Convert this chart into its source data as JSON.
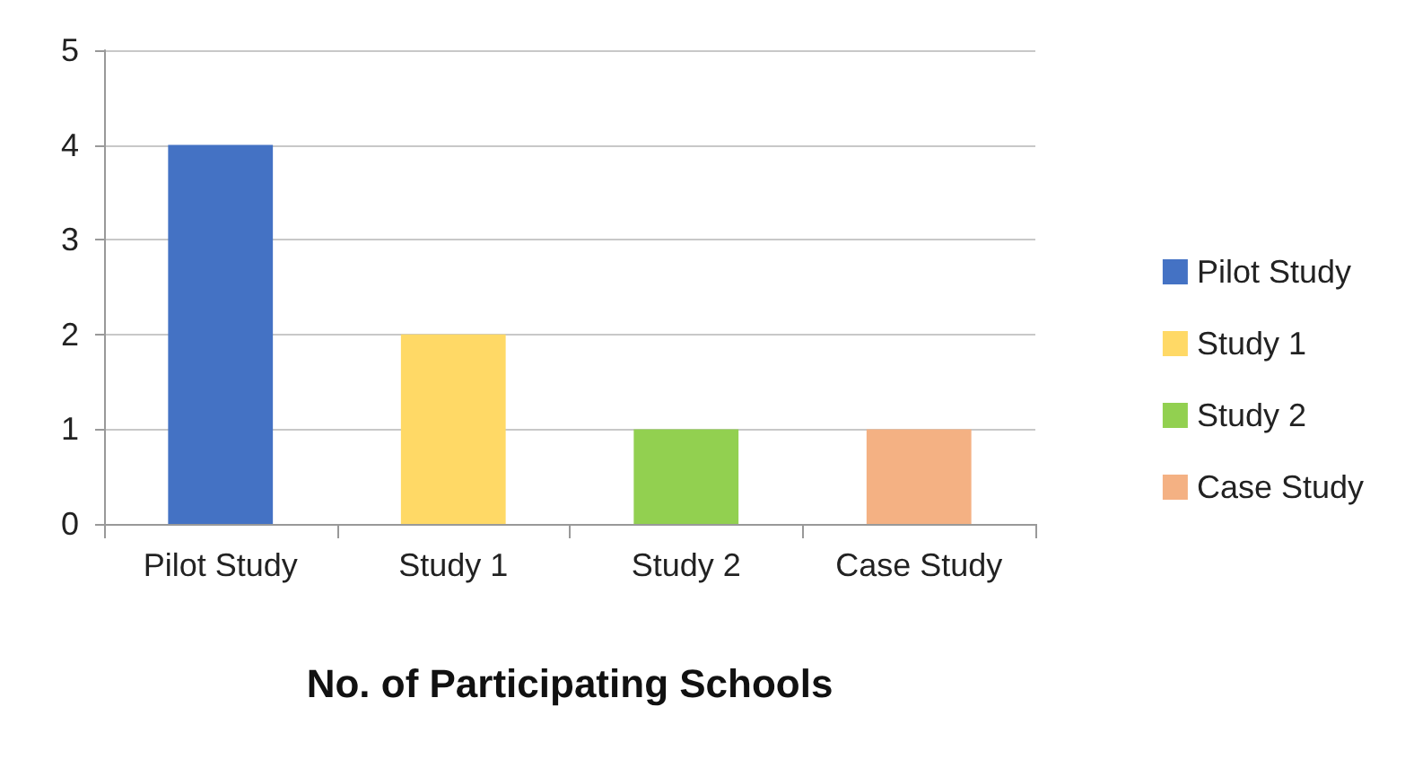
{
  "chart_data": {
    "type": "bar",
    "xlabel": "No. of Participating Schools",
    "categories": [
      "Pilot Study",
      "Study 1",
      "Study 2",
      "Case Study"
    ],
    "stacked": true,
    "series": [
      {
        "name": "Pilot Study",
        "color": "#4472c4",
        "values": [
          4,
          null,
          null,
          null
        ]
      },
      {
        "name": "Study 1",
        "color": "#ffd966",
        "values": [
          null,
          2,
          null,
          null
        ]
      },
      {
        "name": "Study 2",
        "color": "#92d050",
        "values": [
          null,
          null,
          1,
          null
        ]
      },
      {
        "name": "Case Study",
        "color": "#f4b183",
        "values": [
          null,
          null,
          null,
          1
        ]
      }
    ],
    "ylim": [
      0,
      5
    ],
    "yticks": [
      0,
      1,
      2,
      3,
      4,
      5
    ],
    "grid": "y",
    "legend": "right"
  }
}
